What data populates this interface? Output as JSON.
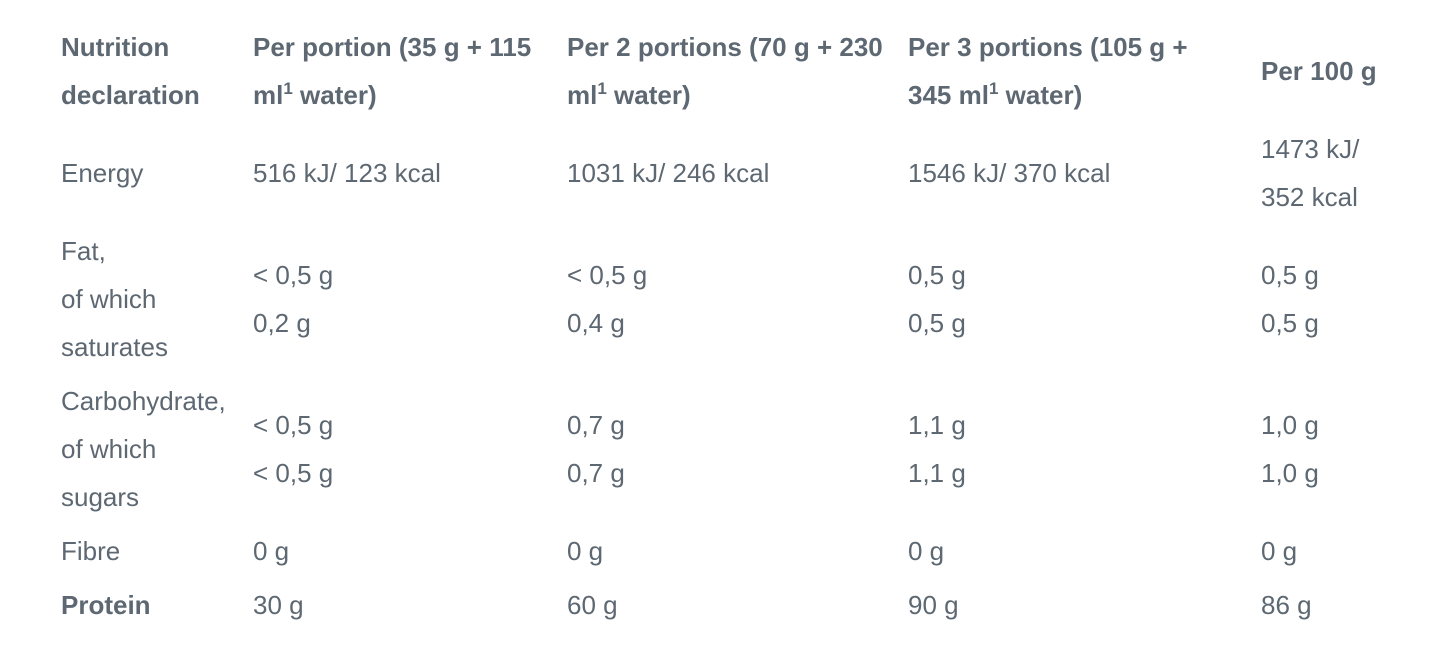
{
  "table": {
    "header": [
      [
        [
          "Nutrition"
        ],
        [
          "declaration"
        ]
      ],
      [
        [
          "Per portion (35 g + 115"
        ],
        [
          "ml",
          {
            "sup": "1"
          },
          " water)"
        ]
      ],
      [
        [
          "Per 2 portions (70 g + 230"
        ],
        [
          "ml",
          {
            "sup": "1"
          },
          " water)"
        ]
      ],
      [
        [
          "Per 3 portions (105 g +"
        ],
        [
          "345 ml",
          {
            "sup": "1"
          },
          " water)"
        ]
      ],
      [
        [
          "Per 100 g"
        ]
      ]
    ],
    "rows": [
      [
        [
          "Energy"
        ],
        [
          "516 kJ/ 123 kcal"
        ],
        [
          "1031 kJ/ 246 kcal"
        ],
        [
          "1546 kJ/ 370 kcal"
        ],
        [
          "1473 kJ/",
          "352 kcal"
        ]
      ],
      [
        [
          "Fat,",
          "of which",
          "saturates"
        ],
        [
          "< 0,5 g",
          "0,2 g"
        ],
        [
          "< 0,5 g",
          "0,4 g"
        ],
        [
          "0,5 g",
          "0,5 g"
        ],
        [
          "0,5 g",
          "0,5 g"
        ]
      ],
      [
        [
          "Carbohydrate,",
          "of which",
          "sugars"
        ],
        [
          "< 0,5 g",
          "< 0,5 g"
        ],
        [
          "0,7 g",
          "0,7 g"
        ],
        [
          "1,1 g",
          "1,1 g"
        ],
        [
          "1,0 g",
          "1,0 g"
        ]
      ],
      [
        [
          "Fibre"
        ],
        [
          "0 g"
        ],
        [
          "0 g"
        ],
        [
          "0 g"
        ],
        [
          "0 g"
        ]
      ],
      [
        [
          "Protein"
        ],
        [
          "30 g"
        ],
        [
          "60 g"
        ],
        [
          "90 g"
        ],
        [
          "86 g"
        ]
      ]
    ]
  }
}
